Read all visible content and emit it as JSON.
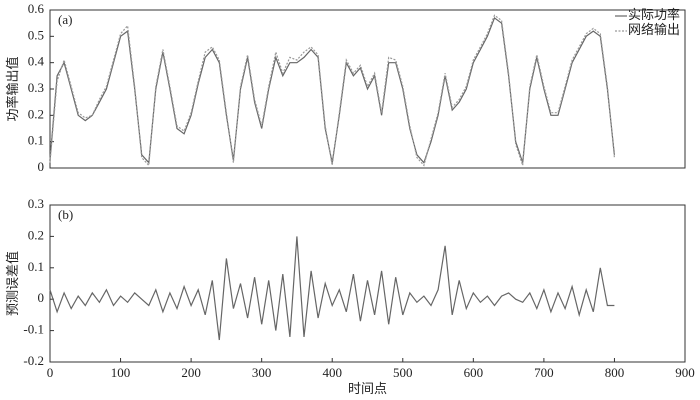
{
  "chart_data": [
    {
      "type": "line",
      "label": "(a)",
      "ylabel": "功率输出值",
      "x": [
        0,
        10,
        20,
        30,
        40,
        50,
        60,
        70,
        80,
        90,
        100,
        110,
        120,
        130,
        140,
        150,
        160,
        170,
        180,
        190,
        200,
        210,
        220,
        230,
        240,
        250,
        260,
        270,
        280,
        290,
        300,
        310,
        320,
        330,
        340,
        350,
        360,
        370,
        380,
        390,
        400,
        410,
        420,
        430,
        440,
        450,
        460,
        470,
        480,
        490,
        500,
        510,
        520,
        530,
        540,
        550,
        560,
        570,
        580,
        590,
        600,
        610,
        620,
        630,
        640,
        650,
        660,
        670,
        680,
        690,
        700,
        710,
        720,
        730,
        740,
        750,
        760,
        770,
        780,
        790,
        800
      ],
      "series": [
        {
          "name": "实际功率",
          "color": "#666666",
          "dash": false,
          "values": [
            0.03,
            0.35,
            0.4,
            0.3,
            0.2,
            0.18,
            0.2,
            0.25,
            0.3,
            0.4,
            0.5,
            0.52,
            0.3,
            0.05,
            0.02,
            0.3,
            0.44,
            0.3,
            0.15,
            0.13,
            0.2,
            0.32,
            0.42,
            0.45,
            0.4,
            0.2,
            0.03,
            0.3,
            0.42,
            0.25,
            0.15,
            0.3,
            0.42,
            0.35,
            0.4,
            0.4,
            0.42,
            0.45,
            0.42,
            0.15,
            0.02,
            0.2,
            0.4,
            0.35,
            0.38,
            0.3,
            0.35,
            0.2,
            0.4,
            0.4,
            0.3,
            0.15,
            0.05,
            0.02,
            0.1,
            0.2,
            0.35,
            0.22,
            0.25,
            0.3,
            0.4,
            0.45,
            0.5,
            0.57,
            0.55,
            0.35,
            0.1,
            0.02,
            0.3,
            0.42,
            0.3,
            0.2,
            0.2,
            0.3,
            0.4,
            0.45,
            0.5,
            0.52,
            0.5,
            0.3,
            0.05
          ]
        },
        {
          "name": "网络输出",
          "color": "#999999",
          "dash": true,
          "values": [
            0.02,
            0.33,
            0.41,
            0.31,
            0.21,
            0.19,
            0.2,
            0.26,
            0.31,
            0.41,
            0.51,
            0.54,
            0.31,
            0.04,
            0.01,
            0.31,
            0.45,
            0.31,
            0.16,
            0.14,
            0.21,
            0.33,
            0.44,
            0.46,
            0.41,
            0.21,
            0.02,
            0.31,
            0.43,
            0.26,
            0.16,
            0.31,
            0.44,
            0.36,
            0.42,
            0.41,
            0.44,
            0.46,
            0.43,
            0.16,
            0.01,
            0.21,
            0.41,
            0.36,
            0.39,
            0.31,
            0.36,
            0.21,
            0.42,
            0.41,
            0.31,
            0.16,
            0.04,
            0.01,
            0.11,
            0.21,
            0.36,
            0.23,
            0.26,
            0.31,
            0.41,
            0.46,
            0.51,
            0.58,
            0.56,
            0.36,
            0.09,
            0.01,
            0.31,
            0.43,
            0.31,
            0.21,
            0.21,
            0.31,
            0.41,
            0.46,
            0.51,
            0.53,
            0.51,
            0.31,
            0.04
          ]
        }
      ],
      "xlim": [
        0,
        900
      ],
      "ylim": [
        0,
        0.6
      ],
      "yticks": [
        0,
        0.1,
        0.2,
        0.3,
        0.4,
        0.5,
        0.6
      ],
      "legend": "upper right"
    },
    {
      "type": "line",
      "label": "(b)",
      "ylabel": "预测误差值",
      "xlabel": "时间点",
      "x": [
        0,
        10,
        20,
        30,
        40,
        50,
        60,
        70,
        80,
        90,
        100,
        110,
        120,
        130,
        140,
        150,
        160,
        170,
        180,
        190,
        200,
        210,
        220,
        230,
        240,
        250,
        260,
        270,
        280,
        290,
        300,
        310,
        320,
        330,
        340,
        350,
        360,
        370,
        380,
        390,
        400,
        410,
        420,
        430,
        440,
        450,
        460,
        470,
        480,
        490,
        500,
        510,
        520,
        530,
        540,
        550,
        560,
        570,
        580,
        590,
        600,
        610,
        620,
        630,
        640,
        650,
        660,
        670,
        680,
        690,
        700,
        710,
        720,
        730,
        740,
        750,
        760,
        770,
        780,
        790,
        800
      ],
      "series": [
        {
          "name": null,
          "color": "#666666",
          "dash": false,
          "values": [
            0.03,
            -0.04,
            0.02,
            -0.03,
            0.01,
            -0.02,
            0.02,
            -0.01,
            0.03,
            -0.02,
            0.01,
            -0.01,
            0.02,
            0.0,
            -0.02,
            0.03,
            -0.04,
            0.02,
            -0.03,
            0.04,
            -0.02,
            0.03,
            -0.05,
            0.06,
            -0.13,
            0.13,
            -0.03,
            0.05,
            -0.06,
            0.07,
            -0.08,
            0.06,
            -0.1,
            0.08,
            -0.12,
            0.2,
            -0.12,
            0.09,
            -0.06,
            0.05,
            -0.02,
            0.03,
            -0.04,
            0.08,
            -0.07,
            0.06,
            -0.05,
            0.09,
            -0.08,
            0.07,
            -0.05,
            0.02,
            -0.01,
            0.01,
            -0.02,
            0.03,
            0.17,
            -0.05,
            0.06,
            -0.03,
            0.02,
            -0.01,
            0.01,
            -0.02,
            0.01,
            0.02,
            0.0,
            -0.01,
            0.02,
            -0.03,
            0.03,
            -0.04,
            0.02,
            -0.03,
            0.04,
            -0.05,
            0.03,
            -0.04,
            0.1,
            -0.02,
            -0.02
          ]
        }
      ],
      "xlim": [
        0,
        900
      ],
      "ylim": [
        -0.2,
        0.3
      ],
      "yticks": [
        -0.2,
        -0.1,
        0,
        0.1,
        0.2,
        0.3
      ],
      "xticks": [
        0,
        100,
        200,
        300,
        400,
        500,
        600,
        700,
        800,
        900
      ]
    }
  ]
}
